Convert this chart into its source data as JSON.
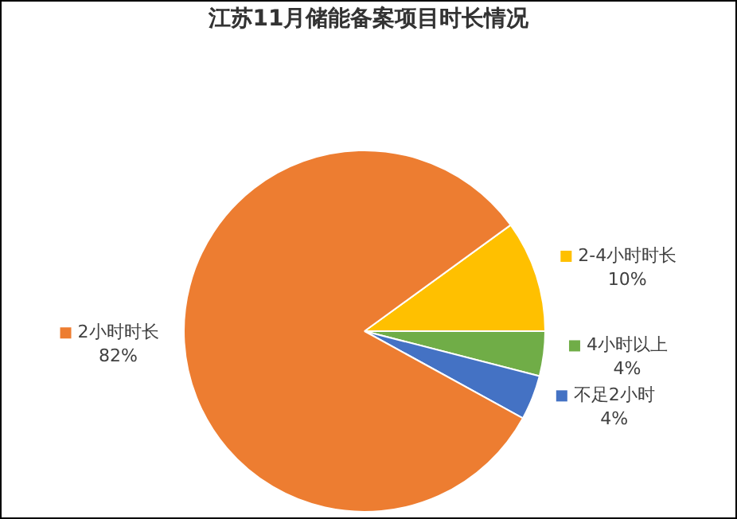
{
  "chart_data": {
    "type": "pie",
    "title": "江苏11月储能备案项目时长情况",
    "categories": [
      "2-4小时时长",
      "4小时以上",
      "不足2小时",
      "2小时时长"
    ],
    "values": [
      10,
      4,
      4,
      82
    ],
    "value_labels": [
      "10%",
      "4%",
      "4%",
      "82%"
    ],
    "colors": [
      "#ffc000",
      "#70ad47",
      "#4472c4",
      "#ed7d31"
    ],
    "legend": "right"
  }
}
